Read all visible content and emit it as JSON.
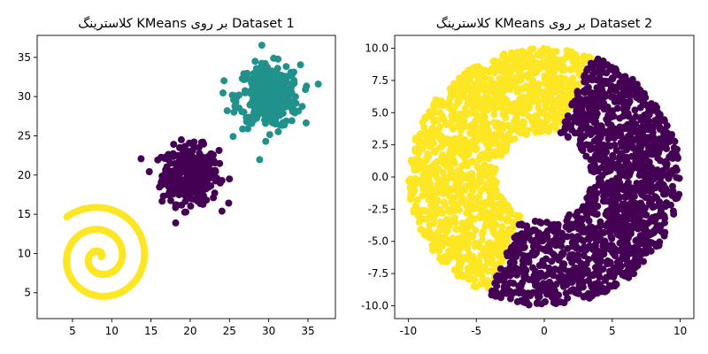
{
  "chart_data": [
    {
      "type": "scatter",
      "title": "کلاسترینگ KMeans بر روی Dataset 1",
      "xlabel": "",
      "ylabel": "",
      "xlim": [
        0.5,
        38.5
      ],
      "ylim": [
        1.7,
        37.8
      ],
      "xticks": [
        5,
        10,
        15,
        20,
        25,
        30,
        35
      ],
      "yticks": [
        5,
        10,
        15,
        20,
        25,
        30,
        35
      ],
      "grid": false,
      "clusters": [
        {
          "color": "#440154",
          "description_points": "blob",
          "center": [
            20,
            20
          ],
          "spread": 1.8,
          "count": 350
        },
        {
          "color": "#21918c",
          "description_points": "blob",
          "center": [
            30,
            30
          ],
          "spread": 2.0,
          "count": 350
        },
        {
          "color": "#fde725",
          "description_points": "spiral",
          "center": [
            8.5,
            9.5
          ],
          "turns": 2.0,
          "max_radius": 6.5,
          "count": 500
        }
      ]
    },
    {
      "type": "scatter",
      "title": "کلاسترینگ KMeans بر روی Dataset 2",
      "xlabel": "",
      "ylabel": "",
      "xlim": [
        -11,
        11
      ],
      "ylim": [
        -11,
        11
      ],
      "xticks": [
        -10,
        -5,
        0,
        5,
        10
      ],
      "yticks": [
        -10.0,
        -7.5,
        -5.0,
        -2.5,
        0.0,
        2.5,
        5.0,
        7.5,
        10.0
      ],
      "grid": false,
      "clusters": [
        {
          "color": "#fde725",
          "description_points": "left half of disk",
          "radius": 10,
          "count": 1400
        },
        {
          "color": "#440154",
          "description_points": "right half of disk",
          "radius": 10,
          "count": 1400
        }
      ]
    }
  ]
}
